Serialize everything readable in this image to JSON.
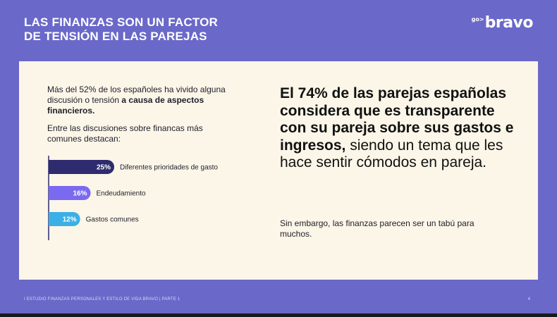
{
  "header": {
    "title_line1": "LAS FINANZAS SON UN FACTOR",
    "title_line2": "DE TENSIÓN EN LAS PAREJAS",
    "logo_prefix": "go>",
    "logo_text": "bravo"
  },
  "left": {
    "intro_plain": "Más del 52% de los españoles ha vivido alguna discusión o tensión ",
    "intro_bold": "a causa de aspectos financieros.",
    "subtitle": "Entre las discusiones sobre financas más comunes destacan:"
  },
  "right": {
    "headline_bold": "El 74% de las parejas españolas considera que es transparente con su pareja sobre sus gastos e ingresos,",
    "headline_plain": " siendo un tema que les hace sentir cómodos en pareja.",
    "note": "Sin embargo, las finanzas parecen ser un tabú para muchos."
  },
  "footer": {
    "text": "I ESTUDIO FINANZAS PERSONALES Y ESTILO DE VIDA BRAVO | PARTE 1",
    "page": "4"
  },
  "chart_data": {
    "type": "bar",
    "orientation": "horizontal",
    "categories": [
      "Diferentes prioridades de gasto",
      "Endeudamiento",
      "Gastos comunes"
    ],
    "values": [
      25,
      16,
      12
    ],
    "value_labels": [
      "25%",
      "16%",
      "12%"
    ],
    "colors": [
      "#2e2b6e",
      "#7a6af0",
      "#3ab0e6"
    ],
    "title": "",
    "xlabel": "",
    "ylabel": ""
  }
}
